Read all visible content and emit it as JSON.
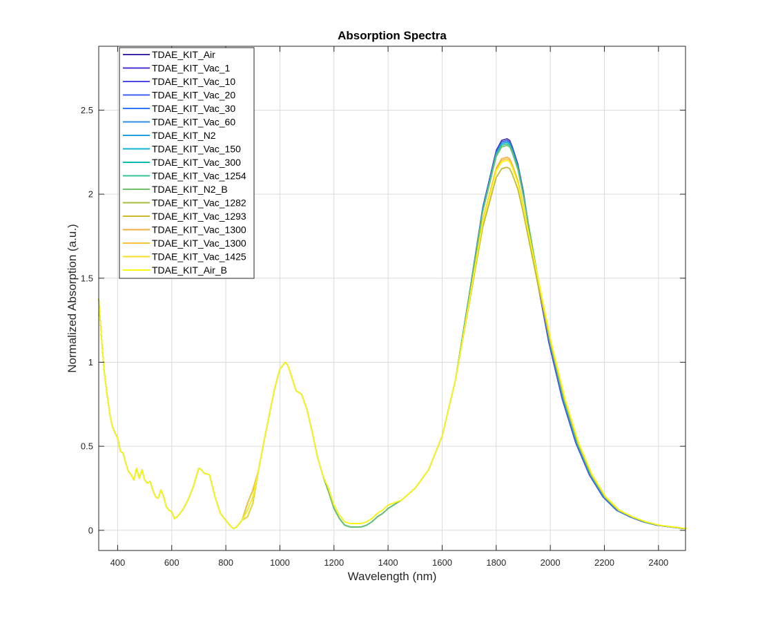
{
  "chart_data": {
    "type": "line",
    "title": "Absorption Spectra",
    "xlabel": "Wavelength (nm)",
    "ylabel": "Normalized Absorption (a.u.)",
    "xlim": [
      330,
      2500
    ],
    "ylim": [
      -0.12,
      2.88
    ],
    "x_ticks": [
      400,
      600,
      800,
      1000,
      1200,
      1400,
      1600,
      1800,
      2000,
      2200,
      2400
    ],
    "x_tick_labels": [
      "400",
      "600",
      "800",
      "1000",
      "1200",
      "1400",
      "1600",
      "1800",
      "2000",
      "2200",
      "2400"
    ],
    "y_ticks": [
      0,
      0.5,
      1,
      1.5,
      2,
      2.5
    ],
    "y_tick_labels": [
      "0",
      "0.5",
      "1",
      "1.5",
      "2",
      "2.5"
    ],
    "grid": true,
    "legend_position": "top-left",
    "base_curve": {
      "x": [
        330,
        340,
        350,
        360,
        370,
        380,
        390,
        400,
        410,
        420,
        430,
        440,
        450,
        460,
        470,
        480,
        490,
        500,
        510,
        520,
        530,
        540,
        550,
        560,
        570,
        580,
        590,
        600,
        610,
        620,
        640,
        660,
        680,
        700,
        710,
        720,
        740,
        760,
        780,
        800,
        820,
        830,
        840,
        860,
        880,
        900,
        920,
        940,
        960,
        980,
        1000,
        1020,
        1030,
        1040,
        1060,
        1080,
        1100,
        1120,
        1140,
        1160,
        1180,
        1200,
        1220,
        1240,
        1260,
        1280,
        1300,
        1320,
        1340,
        1360,
        1380,
        1400,
        1450,
        1500,
        1550,
        1600,
        1650,
        1700,
        1750,
        1800,
        1820,
        1840,
        1850,
        1860,
        1880,
        1900,
        1950,
        2000,
        2050,
        2100,
        2150,
        2200,
        2250,
        2300,
        2350,
        2400,
        2450,
        2500
      ],
      "y": [
        1.38,
        1.15,
        0.95,
        0.82,
        0.7,
        0.62,
        0.58,
        0.55,
        0.47,
        0.46,
        0.4,
        0.35,
        0.33,
        0.3,
        0.37,
        0.31,
        0.36,
        0.3,
        0.28,
        0.29,
        0.24,
        0.2,
        0.19,
        0.24,
        0.2,
        0.14,
        0.12,
        0.11,
        0.07,
        0.08,
        0.12,
        0.18,
        0.26,
        0.37,
        0.36,
        0.34,
        0.33,
        0.2,
        0.1,
        0.06,
        0.02,
        0.01,
        0.02,
        0.06,
        0.12,
        0.2,
        0.35,
        0.52,
        0.68,
        0.84,
        0.96,
        1.0,
        0.98,
        0.93,
        0.83,
        0.81,
        0.72,
        0.58,
        0.43,
        0.32,
        0.23,
        0.13,
        0.07,
        0.03,
        0.02,
        0.02,
        0.02,
        0.03,
        0.05,
        0.08,
        0.1,
        0.13,
        0.18,
        0.25,
        0.36,
        0.56,
        0.9,
        1.4,
        1.92,
        2.26,
        2.32,
        2.33,
        2.32,
        2.28,
        2.18,
        2.02,
        1.55,
        1.12,
        0.78,
        0.52,
        0.33,
        0.2,
        0.12,
        0.08,
        0.05,
        0.03,
        0.02,
        0.01
      ]
    },
    "series": [
      {
        "name": "TDAE_KIT_Air",
        "color": "#3e26a8",
        "peak": 2.33
      },
      {
        "name": "TDAE_KIT_Vac_1",
        "color": "#4634d2",
        "peak": 2.32
      },
      {
        "name": "TDAE_KIT_Vac_10",
        "color": "#4749eb",
        "peak": 2.32
      },
      {
        "name": "TDAE_KIT_Vac_20",
        "color": "#3f60fb",
        "peak": 2.32
      },
      {
        "name": "TDAE_KIT_Vac_30",
        "color": "#2d77fd",
        "peak": 2.31
      },
      {
        "name": "TDAE_KIT_Vac_60",
        "color": "#2a8ced",
        "peak": 2.31
      },
      {
        "name": "TDAE_KIT_N2",
        "color": "#1ea0e0",
        "peak": 2.31
      },
      {
        "name": "TDAE_KIT_Vac_150",
        "color": "#0db1d2",
        "peak": 2.31
      },
      {
        "name": "TDAE_KIT_Vac_300",
        "color": "#0cbbb0",
        "peak": 2.3
      },
      {
        "name": "TDAE_KIT_Vac_1254",
        "color": "#34c390",
        "peak": 2.3
      },
      {
        "name": "TDAE_KIT_N2_B",
        "color": "#71c168",
        "peak": 2.29
      },
      {
        "name": "TDAE_KIT_Vac_1282",
        "color": "#a5be3c",
        "peak": 2.16
      },
      {
        "name": "TDAE_KIT_Vac_1293",
        "color": "#cab72c",
        "peak": 2.16
      },
      {
        "name": "TDAE_KIT_Vac_1300",
        "color": "#f1ae3c",
        "peak": 2.22
      },
      {
        "name": "TDAE_KIT_Vac_1300",
        "color": "#fdc137",
        "peak": 2.21
      },
      {
        "name": "TDAE_KIT_Vac_1425",
        "color": "#f6dc22",
        "peak": 2.2
      },
      {
        "name": "TDAE_KIT_Air_B",
        "color": "#f9fb0e",
        "peak": 2.2
      }
    ]
  }
}
